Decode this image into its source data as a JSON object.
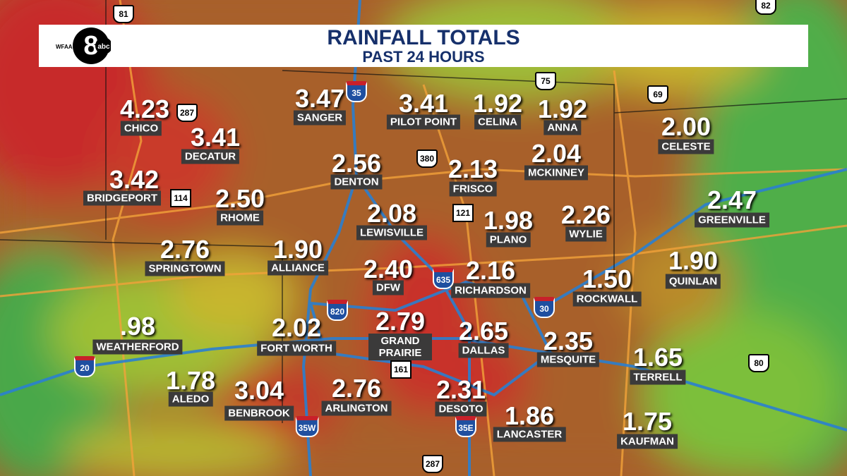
{
  "header": {
    "title": "RAINFALL TOTALS",
    "subtitle": "PAST 24 HOURS"
  },
  "logo": {
    "number": "8",
    "station": "WFAA",
    "network": "abc"
  },
  "cities": [
    {
      "name": "CHICO",
      "amount": "4.23"
    },
    {
      "name": "DECATUR",
      "amount": "3.41"
    },
    {
      "name": "BRIDGEPORT",
      "amount": "3.42"
    },
    {
      "name": "RHOME",
      "amount": "2.50"
    },
    {
      "name": "SPRINGTOWN",
      "amount": "2.76"
    },
    {
      "name": "SANGER",
      "amount": "3.47"
    },
    {
      "name": "DENTON",
      "amount": "2.56"
    },
    {
      "name": "PILOT POINT",
      "amount": "3.41"
    },
    {
      "name": "CELINA",
      "amount": "1.92"
    },
    {
      "name": "ANNA",
      "amount": "1.92"
    },
    {
      "name": "CELESTE",
      "amount": "2.00"
    },
    {
      "name": "MCKINNEY",
      "amount": "2.04"
    },
    {
      "name": "FRISCO",
      "amount": "2.13"
    },
    {
      "name": "GREENVILLE",
      "amount": "2.47"
    },
    {
      "name": "LEWISVILLE",
      "amount": "2.08"
    },
    {
      "name": "PLANO",
      "amount": "1.98"
    },
    {
      "name": "WYLIE",
      "amount": "2.26"
    },
    {
      "name": "ALLIANCE",
      "amount": "1.90"
    },
    {
      "name": "DFW",
      "amount": "2.40"
    },
    {
      "name": "RICHARDSON",
      "amount": "2.16"
    },
    {
      "name": "ROCKWALL",
      "amount": "1.50"
    },
    {
      "name": "QUINLAN",
      "amount": "1.90"
    },
    {
      "name": "WEATHERFORD",
      "amount": ".98"
    },
    {
      "name": "FORT WORTH",
      "amount": "2.02"
    },
    {
      "name": "GRAND PRAIRIE",
      "amount": "2.79"
    },
    {
      "name": "DALLAS",
      "amount": "2.65"
    },
    {
      "name": "MESQUITE",
      "amount": "2.35"
    },
    {
      "name": "TERRELL",
      "amount": "1.65"
    },
    {
      "name": "ALEDO",
      "amount": "1.78"
    },
    {
      "name": "BENBROOK",
      "amount": "3.04"
    },
    {
      "name": "ARLINGTON",
      "amount": "2.76"
    },
    {
      "name": "DESOTO",
      "amount": "2.31"
    },
    {
      "name": "LANCASTER",
      "amount": "1.86"
    },
    {
      "name": "KAUFMAN",
      "amount": "1.75"
    }
  ],
  "shields": [
    "81",
    "82",
    "287",
    "35",
    "75",
    "69",
    "380",
    "114",
    "121",
    "820",
    "635",
    "30",
    "20",
    "161",
    "35W",
    "35E",
    "287",
    "80"
  ]
}
